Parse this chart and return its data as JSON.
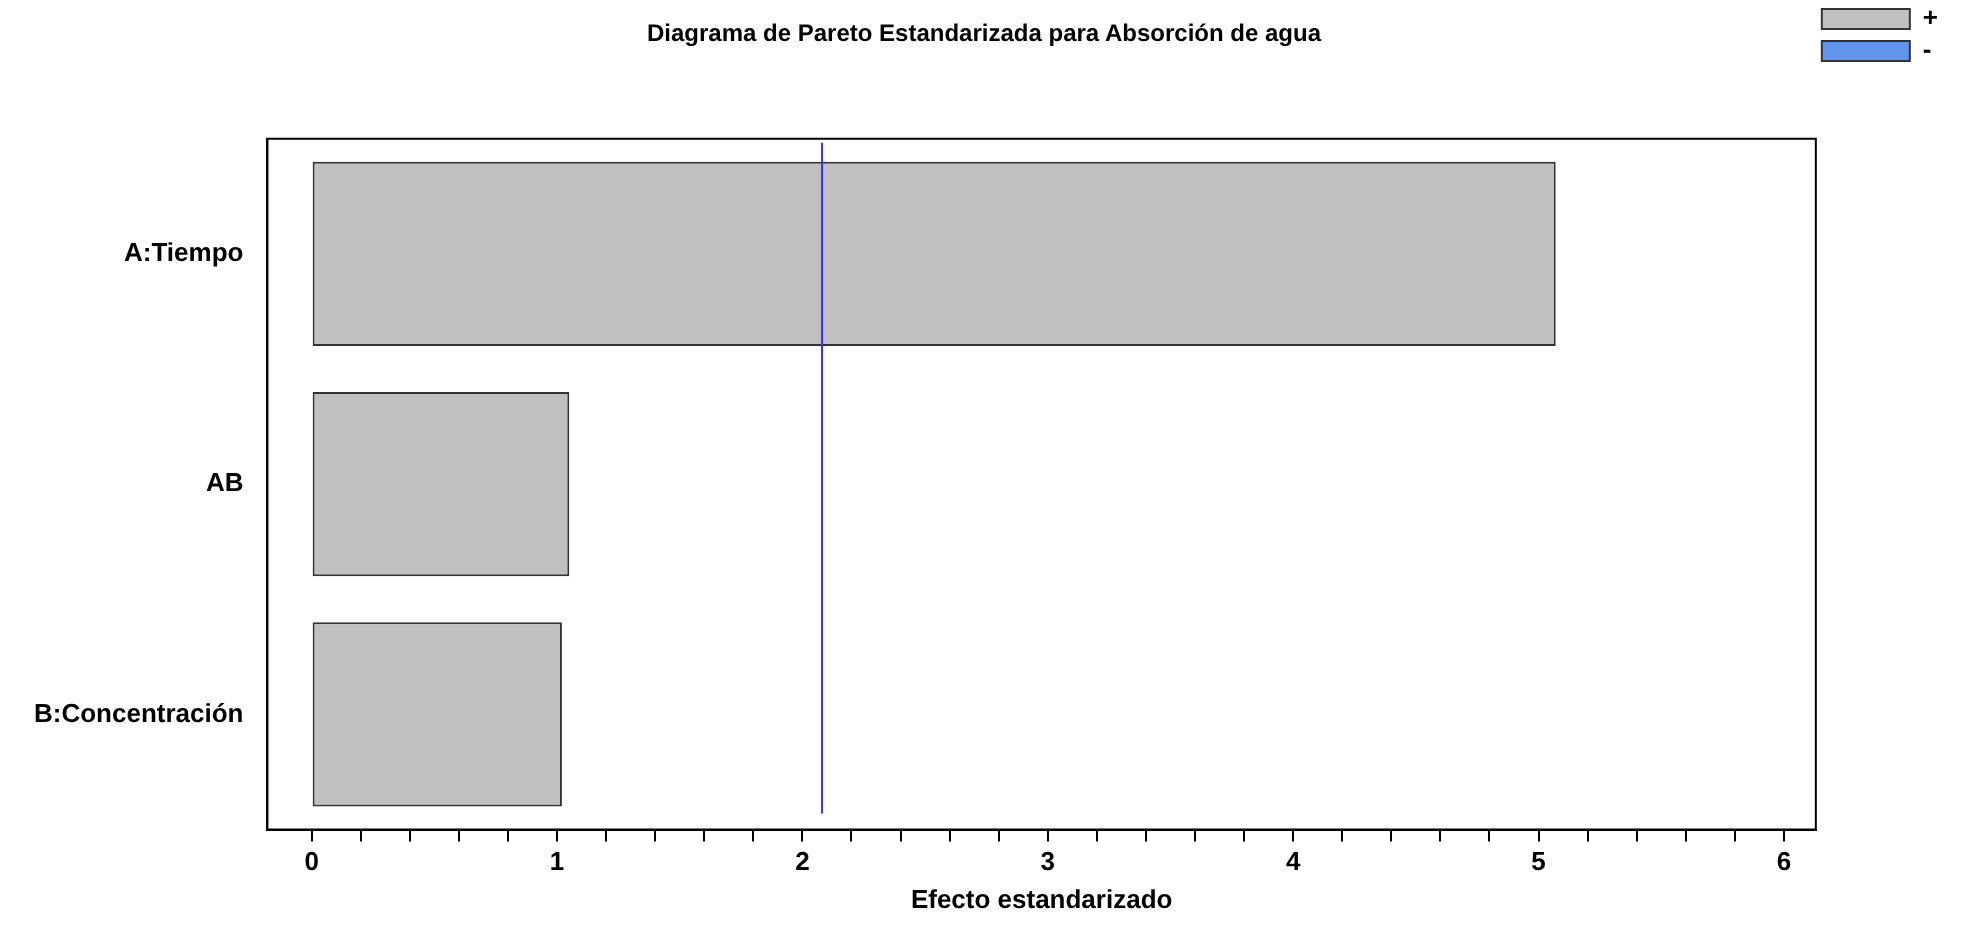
{
  "chart_data": {
    "type": "bar",
    "orientation": "horizontal",
    "title": "Diagrama de Pareto Estandarizada para Absorción de agua",
    "xlabel": "Efecto estandarizado",
    "categories": [
      "A:Tiempo",
      "AB",
      "B:Concentración"
    ],
    "series": [
      {
        "name": "+",
        "color": "#c0c0c0",
        "values": [
          5.07,
          1.05,
          1.02
        ]
      },
      {
        "name": "-",
        "color": "#6495ed",
        "values": [
          null,
          null,
          null
        ]
      }
    ],
    "xlim": [
      -0.18,
      6.13
    ],
    "xticks": [
      0,
      {
        "value": 0.2,
        "label": null
      },
      {
        "value": 0.4,
        "label": null
      },
      {
        "value": 0.6,
        "label": null
      },
      {
        "value": 0.8,
        "label": null
      },
      1,
      {
        "value": 1.2,
        "label": null
      },
      {
        "value": 1.4,
        "label": null
      },
      {
        "value": 1.6,
        "label": null
      },
      {
        "value": 1.8,
        "label": null
      },
      2,
      {
        "value": 2.2,
        "label": null
      },
      {
        "value": 2.4,
        "label": null
      },
      {
        "value": 2.6,
        "label": null
      },
      {
        "value": 2.8,
        "label": null
      },
      3,
      {
        "value": 3.2,
        "label": null
      },
      {
        "value": 3.4,
        "label": null
      },
      {
        "value": 3.6,
        "label": null
      },
      {
        "value": 3.8,
        "label": null
      },
      4,
      {
        "value": 4.2,
        "label": null
      },
      {
        "value": 4.4,
        "label": null
      },
      {
        "value": 4.6,
        "label": null
      },
      {
        "value": 4.8,
        "label": null
      },
      5,
      {
        "value": 5.2,
        "label": null
      },
      {
        "value": 5.4,
        "label": null
      },
      {
        "value": 5.6,
        "label": null
      },
      {
        "value": 5.8,
        "label": null
      },
      6
    ],
    "ref_lines": [
      {
        "axis": "x",
        "value": 2.08,
        "color": "#3333ff"
      }
    ],
    "grid": false,
    "legend": "top right"
  }
}
